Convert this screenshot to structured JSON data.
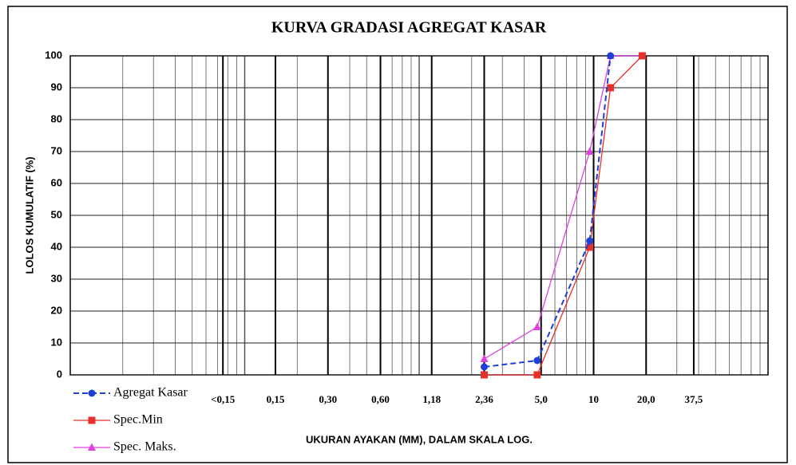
{
  "chart_data": {
    "type": "line",
    "title": "KURVA GRADASI AGREGAT KASAR",
    "x_label": "UKURAN AYAKAN (MM), DALAM SKALA LOG.",
    "y_label": "LOLOS KUMULATIF (%)",
    "xscale": "log",
    "xlim": [
      0.01,
      100
    ],
    "ylim": [
      0,
      100
    ],
    "xticks": [
      {
        "value": 0.075,
        "label": "<0,15"
      },
      {
        "value": 0.15,
        "label": "0,15"
      },
      {
        "value": 0.3,
        "label": "0,30"
      },
      {
        "value": 0.6,
        "label": "0,60"
      },
      {
        "value": 1.18,
        "label": "1,18"
      },
      {
        "value": 2.36,
        "label": "2,36"
      },
      {
        "value": 5.0,
        "label": "5,0"
      },
      10,
      {
        "value": 20.0,
        "label": "20,0"
      },
      {
        "value": 37.5,
        "label": "37,5"
      }
    ],
    "yticks": [
      0,
      10,
      20,
      30,
      40,
      50,
      60,
      70,
      80,
      90,
      100
    ],
    "grid": true,
    "legend": "bottom-left",
    "series": [
      {
        "name": "Agregat Kasar",
        "color": "#1f3fd6",
        "marker": "circle",
        "dashed": true,
        "x": [
          2.36,
          4.75,
          9.5,
          12.5
        ],
        "values": [
          2.5,
          4.5,
          42,
          100
        ]
      },
      {
        "name": "Spec.Min",
        "color": "#e8302a",
        "marker": "square",
        "dashed": false,
        "x": [
          2.36,
          4.75,
          9.5,
          12.5,
          19
        ],
        "values": [
          0,
          0,
          40,
          90,
          100
        ]
      },
      {
        "name": "Spec. Maks.",
        "color": "#e040e0",
        "marker": "triangle",
        "dashed": false,
        "x": [
          2.36,
          4.75,
          9.5,
          12.5,
          19
        ],
        "values": [
          5,
          15,
          70,
          100,
          100
        ]
      }
    ]
  }
}
